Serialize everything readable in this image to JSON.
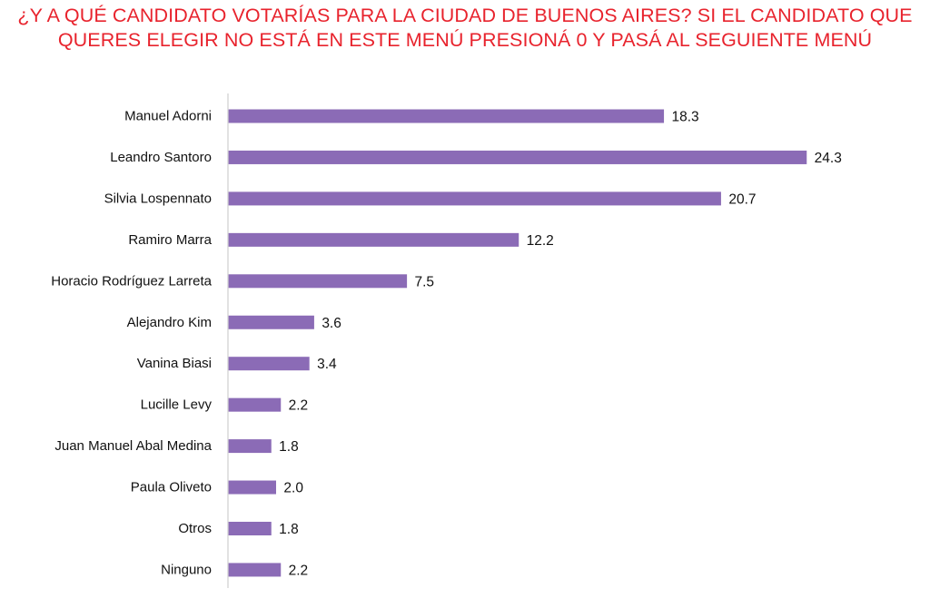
{
  "chart_data": {
    "type": "bar",
    "orientation": "horizontal",
    "title_lines": [
      "¿Y A QUÉ CANDIDATO VOTARÍAS PARA LA CIUDAD DE BUENOS AIRES? SI EL CANDIDATO QUE",
      "QUERES ELEGIR NO ESTÁ EN ESTE MENÚ PRESIONÁ 0 Y PASÁ AL SEGUIENTE MENÚ"
    ],
    "categories": [
      "Manuel Adorni",
      "Leandro Santoro",
      "Silvia Lospennato",
      "Ramiro Marra",
      "Horacio Rodríguez Larreta",
      "Alejandro Kim",
      "Vanina Biasi",
      "Lucille Levy",
      "Juan Manuel Abal Medina",
      "Paula Oliveto",
      "Otros",
      "Ninguno"
    ],
    "values": [
      18.3,
      24.3,
      20.7,
      12.2,
      7.5,
      3.6,
      3.4,
      2.2,
      1.8,
      2.0,
      1.8,
      2.2
    ],
    "value_labels": [
      "18.3",
      "24.3",
      "20.7",
      "12.2",
      "7.5",
      "3.6",
      "3.4",
      "2.2",
      "1.8",
      "2.0",
      "1.8",
      "2.2"
    ],
    "xlabel": "",
    "ylabel": "",
    "xlim": [
      0,
      25
    ],
    "grid": false,
    "legend": "none",
    "colors": {
      "bar": "#8b6bb6",
      "title": "#e8232d",
      "axis": "#cfcfcf",
      "text": "#111111"
    }
  }
}
